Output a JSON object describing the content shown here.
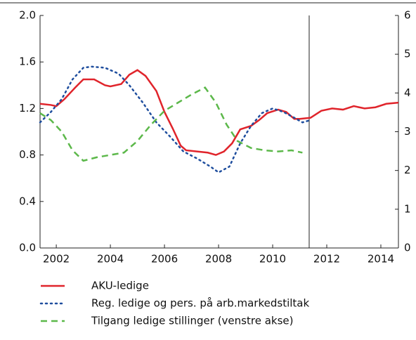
{
  "chart_data": {
    "type": "line",
    "xlim": [
      2001.4,
      2014.65
    ],
    "xticks": [
      2002,
      2004,
      2006,
      2008,
      2010,
      2012,
      2014
    ],
    "ylim": [
      0,
      2
    ],
    "yticks": [
      {
        "value": 0,
        "label": "0.0"
      },
      0.4,
      0.8,
      1.2,
      1.6,
      {
        "value": 2,
        "label": "2.0"
      }
    ],
    "y2lim": [
      0,
      6
    ],
    "y2ticks": [
      0,
      1,
      2,
      3,
      4,
      5,
      6
    ],
    "vline": 2011.35,
    "series": [
      {
        "name": "AKU-ledige",
        "color": "#e0242b",
        "dash": "solid",
        "axis": "y2",
        "x": [
          2001.4,
          2001.8,
          2002.0,
          2002.3,
          2002.7,
          2003.0,
          2003.4,
          2003.8,
          2004.0,
          2004.4,
          2004.7,
          2005.0,
          2005.3,
          2005.7,
          2006.0,
          2006.3,
          2006.6,
          2006.8,
          2007.2,
          2007.6,
          2007.9,
          2008.2,
          2008.5,
          2008.8,
          2009.2,
          2009.5,
          2009.8,
          2010.2,
          2010.5,
          2010.8,
          2011.0,
          2011.4,
          2011.8,
          2012.2,
          2012.6,
          2013.0,
          2013.4,
          2013.8,
          2014.2,
          2014.65
        ],
        "values": [
          3.72,
          3.69,
          3.66,
          3.84,
          4.14,
          4.35,
          4.35,
          4.2,
          4.17,
          4.23,
          4.47,
          4.59,
          4.44,
          4.05,
          3.51,
          3.09,
          2.64,
          2.52,
          2.49,
          2.46,
          2.4,
          2.49,
          2.7,
          3.06,
          3.15,
          3.3,
          3.48,
          3.57,
          3.51,
          3.33,
          3.33,
          3.36,
          3.54,
          3.6,
          3.57,
          3.66,
          3.6,
          3.63,
          3.72,
          3.75
        ]
      },
      {
        "name": "Reg. ledige og pers. på arb.markedstiltak",
        "color": "#1f4e9e",
        "dash": "dotted",
        "axis": "y2",
        "x": [
          2001.4,
          2001.8,
          2002.2,
          2002.6,
          2003.0,
          2003.3,
          2003.8,
          2004.3,
          2004.7,
          2005.2,
          2005.7,
          2006.2,
          2006.7,
          2007.2,
          2007.7,
          2008.0,
          2008.4,
          2008.8,
          2009.2,
          2009.6,
          2010.0,
          2010.4,
          2010.8,
          2011.1,
          2011.4
        ],
        "values": [
          3.24,
          3.51,
          3.84,
          4.35,
          4.65,
          4.68,
          4.65,
          4.5,
          4.2,
          3.75,
          3.24,
          2.88,
          2.49,
          2.31,
          2.1,
          1.95,
          2.1,
          2.7,
          3.15,
          3.48,
          3.6,
          3.51,
          3.36,
          3.24,
          3.3
        ]
      },
      {
        "name": "Tilgang ledige stillinger (venstre akse)",
        "color": "#5cb84a",
        "dash": "dashed",
        "axis": "y",
        "x": [
          2001.4,
          2001.8,
          2002.2,
          2002.6,
          2003.0,
          2003.5,
          2004.0,
          2004.5,
          2005.0,
          2005.5,
          2006.0,
          2006.5,
          2007.0,
          2007.5,
          2007.9,
          2008.3,
          2008.7,
          2009.2,
          2009.7,
          2010.2,
          2010.7,
          2011.1
        ],
        "values": [
          1.16,
          1.1,
          1.0,
          0.84,
          0.75,
          0.78,
          0.8,
          0.82,
          0.92,
          1.06,
          1.18,
          1.25,
          1.32,
          1.38,
          1.25,
          1.06,
          0.92,
          0.86,
          0.84,
          0.83,
          0.84,
          0.82
        ]
      }
    ]
  }
}
